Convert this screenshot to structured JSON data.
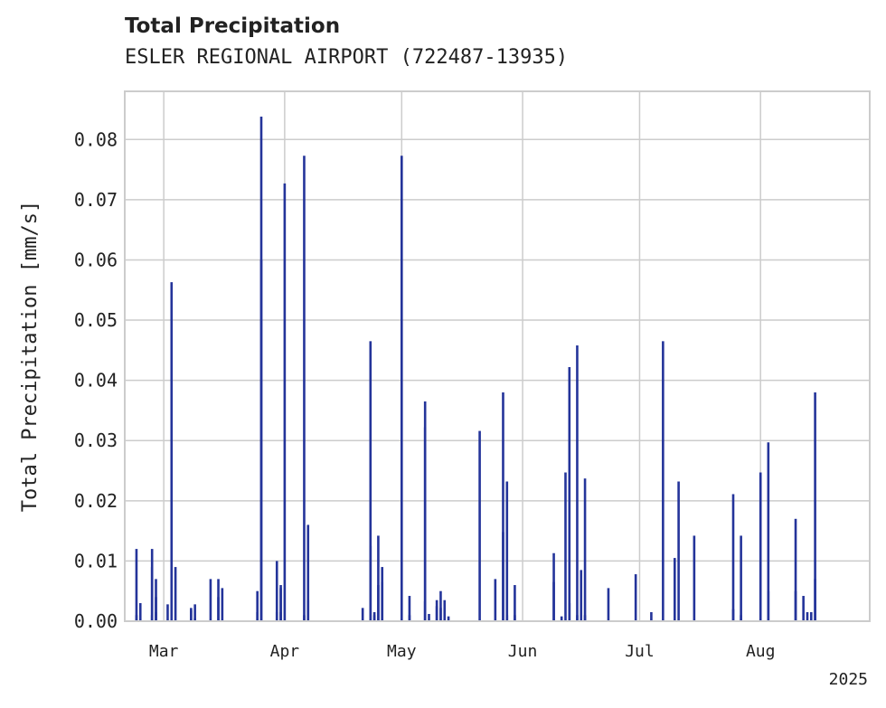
{
  "chart_data": {
    "type": "bar",
    "title": "Total Precipitation",
    "subtitle": "ESLER REGIONAL AIRPORT (722487-13935)",
    "xlabel": "",
    "ylabel": "Total Precipitation [mm/s]",
    "xlim": [
      "2025-02-19",
      "2025-08-29"
    ],
    "ylim": [
      0,
      0.088
    ],
    "grid": true,
    "legend": "none",
    "bar_color": "#24349a",
    "x_ticks": [
      "Mar",
      "Apr",
      "May",
      "Jun",
      "Jul",
      "Aug"
    ],
    "x_tick_dates": [
      "2025-03-01",
      "2025-04-01",
      "2025-05-01",
      "2025-06-01",
      "2025-07-01",
      "2025-08-01"
    ],
    "x_year_label": "2025",
    "y_ticks": [
      "0.00",
      "0.01",
      "0.02",
      "0.03",
      "0.04",
      "0.05",
      "0.06",
      "0.07",
      "0.08"
    ],
    "y_tick_values": [
      0,
      0.01,
      0.02,
      0.03,
      0.04,
      0.05,
      0.06,
      0.07,
      0.08
    ],
    "series": [
      {
        "points": [
          [
            "2025-02-22",
            0.001
          ],
          [
            "2025-02-22",
            0.012
          ],
          [
            "2025-02-23",
            0.003
          ],
          [
            "2025-02-26",
            0.001
          ],
          [
            "2025-02-26",
            0.012
          ],
          [
            "2025-02-26",
            0.009
          ],
          [
            "2025-02-27",
            0.007
          ],
          [
            "2025-02-27",
            0.004
          ],
          [
            "2025-02-27",
            0.0015
          ],
          [
            "2025-03-02",
            0.0028
          ],
          [
            "2025-03-03",
            0.0563
          ],
          [
            "2025-03-04",
            0.009
          ],
          [
            "2025-03-08",
            0.0022
          ],
          [
            "2025-03-08",
            0.0018
          ],
          [
            "2025-03-09",
            0.0028
          ],
          [
            "2025-03-09",
            0.0005
          ],
          [
            "2025-03-13",
            0.007
          ],
          [
            "2025-03-15",
            0.007
          ],
          [
            "2025-03-15",
            0.004
          ],
          [
            "2025-03-16",
            0.0055
          ],
          [
            "2025-03-25",
            0.0015
          ],
          [
            "2025-03-25",
            0.005
          ],
          [
            "2025-03-26",
            0.0838
          ],
          [
            "2025-03-26",
            0.06
          ],
          [
            "2025-03-30",
            0.0015
          ],
          [
            "2025-03-30",
            0.01
          ],
          [
            "2025-03-31",
            0.006
          ],
          [
            "2025-03-31",
            0.0055
          ],
          [
            "2025-03-31",
            0.0015
          ],
          [
            "2025-04-01",
            0.0727
          ],
          [
            "2025-04-06",
            0.001
          ],
          [
            "2025-04-06",
            0.0773
          ],
          [
            "2025-04-07",
            0.016
          ],
          [
            "2025-04-07",
            0.0035
          ],
          [
            "2025-04-21",
            0.0022
          ],
          [
            "2025-04-23",
            0.0465
          ],
          [
            "2025-04-23",
            0.0125
          ],
          [
            "2025-04-24",
            0.0015
          ],
          [
            "2025-04-24",
            0.001
          ],
          [
            "2025-04-25",
            0.0142
          ],
          [
            "2025-04-25",
            0.006
          ],
          [
            "2025-04-26",
            0.0065
          ],
          [
            "2025-04-26",
            0.009
          ],
          [
            "2025-05-01",
            0.0773
          ],
          [
            "2025-05-03",
            0.001
          ],
          [
            "2025-05-03",
            0.0042
          ],
          [
            "2025-05-07",
            0.0033
          ],
          [
            "2025-05-07",
            0.0365
          ],
          [
            "2025-05-07",
            0.0322
          ],
          [
            "2025-05-08",
            0.0012
          ],
          [
            "2025-05-10",
            0.0035
          ],
          [
            "2025-05-10",
            0.0025
          ],
          [
            "2025-05-11",
            0.005
          ],
          [
            "2025-05-11",
            0.0022
          ],
          [
            "2025-05-12",
            0.0035
          ],
          [
            "2025-05-13",
            0.0008
          ],
          [
            "2025-05-21",
            0.0316
          ],
          [
            "2025-05-25",
            0.007
          ],
          [
            "2025-05-27",
            0.0148
          ],
          [
            "2025-05-27",
            0.038
          ],
          [
            "2025-05-28",
            0.0232
          ],
          [
            "2025-05-28",
            0.001
          ],
          [
            "2025-05-30",
            0.006
          ],
          [
            "2025-05-30",
            0.001
          ],
          [
            "2025-06-09",
            0.0113
          ],
          [
            "2025-06-09",
            0.0065
          ],
          [
            "2025-06-11",
            0.0008
          ],
          [
            "2025-06-12",
            0.0247
          ],
          [
            "2025-06-13",
            0.0422
          ],
          [
            "2025-06-13",
            0.003
          ],
          [
            "2025-06-15",
            0.0458
          ],
          [
            "2025-06-15",
            0.001
          ],
          [
            "2025-06-16",
            0.0085
          ],
          [
            "2025-06-17",
            0.0237
          ],
          [
            "2025-06-17",
            0.001
          ],
          [
            "2025-06-23",
            0.0055
          ],
          [
            "2025-06-30",
            0.0078
          ],
          [
            "2025-07-04",
            0.0015
          ],
          [
            "2025-07-07",
            0.0465
          ],
          [
            "2025-07-10",
            0.0105
          ],
          [
            "2025-07-11",
            0.0232
          ],
          [
            "2025-07-15",
            0.0142
          ],
          [
            "2025-07-25",
            0.0211
          ],
          [
            "2025-07-25",
            0.002
          ],
          [
            "2025-07-27",
            0.001
          ],
          [
            "2025-07-27",
            0.0142
          ],
          [
            "2025-08-01",
            0.0247
          ],
          [
            "2025-08-03",
            0.0297
          ],
          [
            "2025-08-03",
            0.005
          ],
          [
            "2025-08-10",
            0.017
          ],
          [
            "2025-08-10",
            0.005
          ],
          [
            "2025-08-12",
            0.0042
          ],
          [
            "2025-08-13",
            0.0015
          ],
          [
            "2025-08-14",
            0.0015
          ],
          [
            "2025-08-15",
            0.038
          ],
          [
            "2025-08-15",
            0.007
          ]
        ]
      }
    ]
  }
}
